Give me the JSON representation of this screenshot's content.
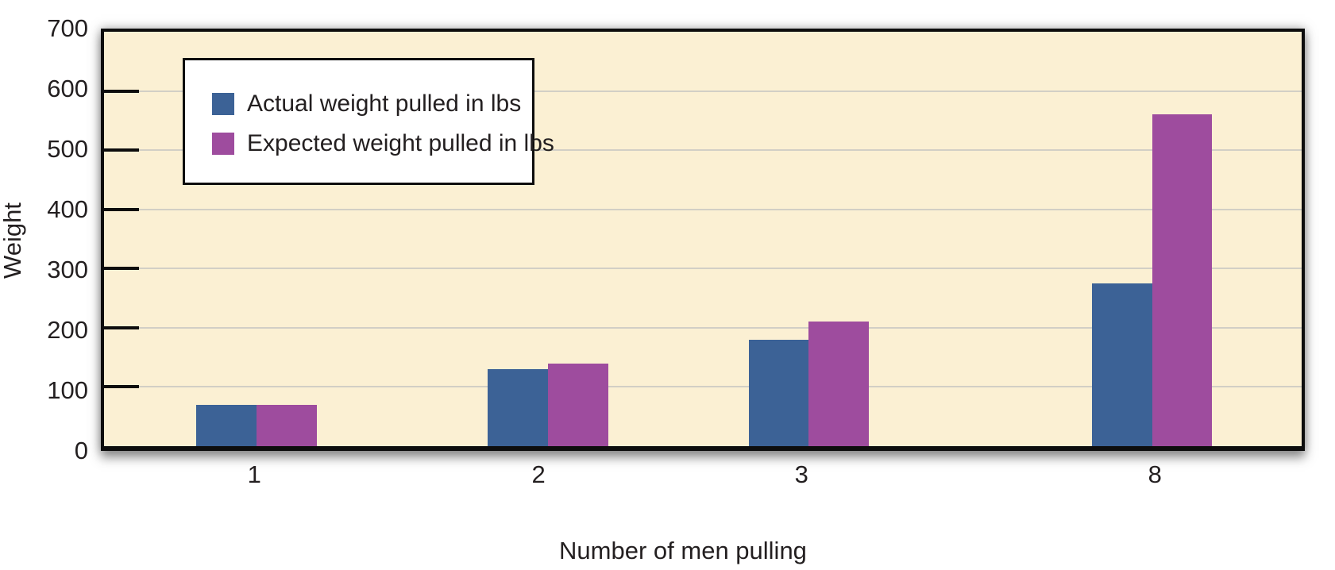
{
  "chart_data": {
    "type": "bar",
    "title": "",
    "categories": [
      "1",
      "2",
      "3",
      "8"
    ],
    "series": [
      {
        "name": "Actual weight pulled in lbs",
        "color": "#3C6296",
        "values": [
          70,
          130,
          180,
          275
        ]
      },
      {
        "name": "Expected weight pulled in lbs",
        "color": "#9E4C9E",
        "values": [
          70,
          140,
          210,
          560
        ]
      }
    ],
    "xlabel": "Number of men pulling",
    "ylabel": "Weight",
    "ylim": [
      0,
      700
    ],
    "yticks": [
      0,
      100,
      200,
      300,
      400,
      500,
      600,
      700
    ],
    "grid": true,
    "legend_position": "top-left",
    "plot_bg_color": "#FBF0D3",
    "gridline_color": "#D2CFC5",
    "axis_color": "#0d0d0d",
    "text_color": "#231F20",
    "layout_hints": {
      "group_left_pct": [
        7.72,
        32.06,
        53.83,
        82.52
      ],
      "bar_width_pct": 5.01,
      "xtick_center_pct": [
        12.75,
        36.35,
        58.2,
        87.55
      ]
    }
  }
}
